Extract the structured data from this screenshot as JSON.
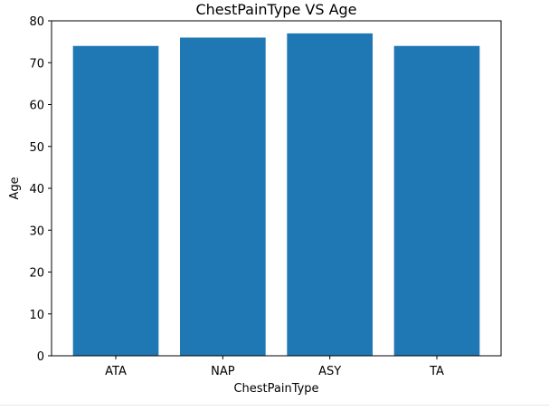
{
  "chart_data": {
    "type": "bar",
    "title": "ChestPainType VS Age",
    "xlabel": "ChestPainType",
    "ylabel": "Age",
    "categories": [
      "ATA",
      "NAP",
      "ASY",
      "TA"
    ],
    "values": [
      74,
      76,
      77,
      74
    ],
    "ylim": [
      0,
      80
    ],
    "yticks": [
      0,
      10,
      20,
      30,
      40,
      50,
      60,
      70,
      80
    ],
    "bar_color": "#1f77b4",
    "grid": false,
    "legend": "none"
  }
}
